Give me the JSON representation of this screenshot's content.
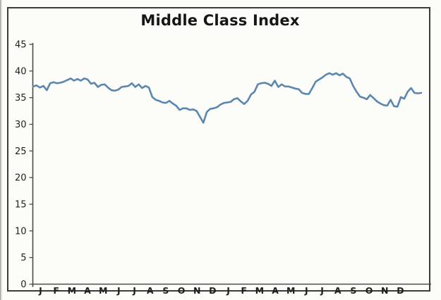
{
  "page": {
    "background_color": "#fcfcf8",
    "frame_color": "#3c3c36"
  },
  "chart": {
    "title": "Middle Class Index",
    "title_color": "#161616",
    "axis_color": "#4d4d47",
    "tick_label_color": "#1e1e1e",
    "line_color": "#5b86af"
  },
  "chart_data": {
    "type": "line",
    "title": "Middle Class Index",
    "xlabel": "",
    "ylabel": "",
    "x_tick_labels": [
      "J",
      "F",
      "M",
      "A",
      "M",
      "J",
      "J",
      "A",
      "S",
      "O",
      "N",
      "D",
      "J",
      "F",
      "M",
      "A",
      "M",
      "J",
      "J",
      "A",
      "S",
      "O",
      "N",
      "D"
    ],
    "x_axis_note": "two consecutive years, monthly labels, weekly data points",
    "y_ticks": [
      0,
      5,
      10,
      15,
      20,
      25,
      30,
      35,
      40,
      45
    ],
    "ylim": [
      0,
      45
    ],
    "grid": false,
    "legend": "none",
    "series": [
      {
        "name": "Middle Class Index",
        "color": "#5b86af",
        "values": [
          37.1,
          37.3,
          36.9,
          37.2,
          36.4,
          37.7,
          37.9,
          37.7,
          37.8,
          38.0,
          38.3,
          38.6,
          38.2,
          38.5,
          38.2,
          38.6,
          38.4,
          37.6,
          37.8,
          37.0,
          37.4,
          37.5,
          36.9,
          36.4,
          36.3,
          36.5,
          37.0,
          37.1,
          37.2,
          37.7,
          37.0,
          37.5,
          36.8,
          37.2,
          36.9,
          35.1,
          34.6,
          34.4,
          34.1,
          34.0,
          34.4,
          33.9,
          33.5,
          32.7,
          33.0,
          33.0,
          32.7,
          32.8,
          32.5,
          31.4,
          30.3,
          32.3,
          32.9,
          33.0,
          33.2,
          33.7,
          34.0,
          34.1,
          34.2,
          34.7,
          34.9,
          34.3,
          33.8,
          34.4,
          35.6,
          36.1,
          37.5,
          37.7,
          37.8,
          37.6,
          37.2,
          38.2,
          37.0,
          37.5,
          37.1,
          37.1,
          36.9,
          36.7,
          36.6,
          35.9,
          35.7,
          35.7,
          36.8,
          38.0,
          38.4,
          38.8,
          39.3,
          39.6,
          39.3,
          39.6,
          39.2,
          39.5,
          38.9,
          38.6,
          37.2,
          36.1,
          35.2,
          35.0,
          34.7,
          35.5,
          34.9,
          34.3,
          33.9,
          33.6,
          33.5,
          34.6,
          33.4,
          33.3,
          35.1,
          34.8,
          36.1,
          36.8,
          35.9,
          35.8,
          35.9
        ]
      }
    ]
  }
}
